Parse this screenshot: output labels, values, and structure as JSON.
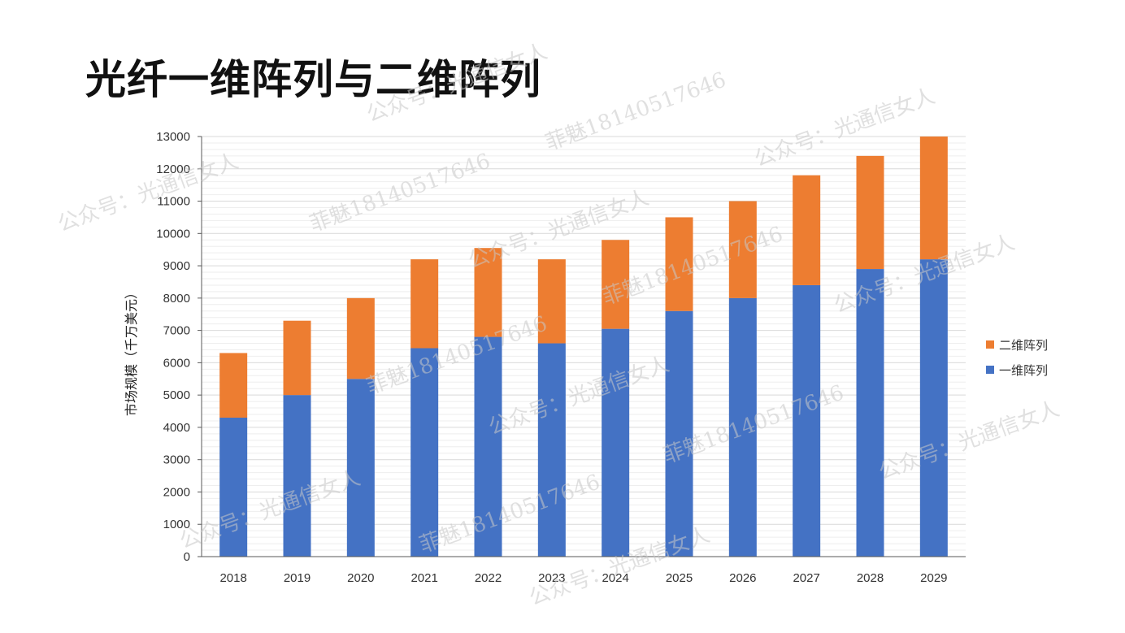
{
  "title": "光纤一维阵列与二维阵列",
  "watermarks": [
    "公众号：光通信女人",
    "菲魅18140517646"
  ],
  "chart_data": {
    "type": "bar",
    "stacked": true,
    "categories": [
      "2018",
      "2019",
      "2020",
      "2021",
      "2022",
      "2023",
      "2024",
      "2025",
      "2026",
      "2027",
      "2028",
      "2029"
    ],
    "series": [
      {
        "name": "一维阵列",
        "color": "#4472C4",
        "values": [
          4300,
          5000,
          5500,
          6450,
          6800,
          6600,
          7050,
          7600,
          8000,
          8400,
          8900,
          9200
        ]
      },
      {
        "name": "二维阵列",
        "color": "#ED7D31",
        "values": [
          2000,
          2300,
          2500,
          2750,
          2750,
          2600,
          2750,
          2900,
          3000,
          3400,
          3500,
          3800
        ]
      }
    ],
    "xlabel": "",
    "ylabel": "市场规模（千万美元）",
    "ylim": [
      0,
      13000
    ],
    "ytick_step": 1000,
    "grid": true,
    "legend_position": "right"
  }
}
